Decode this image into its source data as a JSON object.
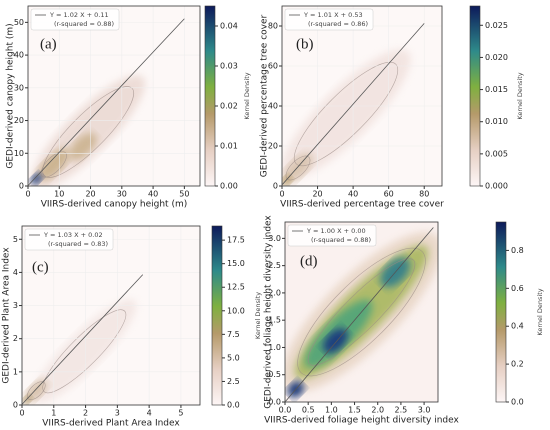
{
  "chart_data": [
    {
      "type": "kde",
      "panel_label": "(a)",
      "xlabel": "VIIRS-derived canopy height (m)",
      "ylabel": "GEDI-derived canopy height (m)",
      "xlim": [
        0,
        55
      ],
      "ylim": [
        0,
        55
      ],
      "xticks": [
        0,
        10,
        20,
        30,
        40,
        50
      ],
      "yticks": [
        0,
        10,
        20,
        30,
        40,
        50
      ],
      "fit": {
        "slope": 1.02,
        "intercept": 0.11,
        "x": [
          0,
          50
        ]
      },
      "legend": [
        "Y = 1.02 X + 0.11",
        "(r-squared = 0.88)"
      ],
      "colorbar_label": "Kernel Density",
      "clim": [
        0,
        0.045
      ],
      "cticks": [
        {
          "value": 0,
          "label": "0.00"
        },
        0.01,
        0.02,
        0.03,
        0.04
      ]
    },
    {
      "type": "kde",
      "panel_label": "(b)",
      "xlabel": "VIIRS-derived percentage tree cover",
      "ylabel": "GEDI-derived percentage tree cover",
      "xlim": [
        0,
        90
      ],
      "ylim": [
        0,
        90
      ],
      "xticks": [
        0,
        20,
        40,
        60,
        80
      ],
      "yticks": [
        0,
        20,
        40,
        60,
        80
      ],
      "fit": {
        "slope": 1.01,
        "intercept": 0.53,
        "x": [
          0,
          80
        ]
      },
      "legend": [
        "Y = 1.01 X + 0.53",
        "(r-squared = 0.86)"
      ],
      "colorbar_label": "Kernel Density",
      "clim": [
        0,
        0.028
      ],
      "cticks": [
        {
          "value": 0,
          "label": "0.000"
        },
        0.005,
        {
          "value": 0.01,
          "label": "0.010"
        },
        0.015,
        {
          "value": 0.02,
          "label": "0.020"
        },
        0.025
      ]
    },
    {
      "type": "kde",
      "panel_label": "(c)",
      "xlabel": "VIIRS-derived Plant Area Index",
      "ylabel": "GEDI-derived Plant Area Index",
      "xlim": [
        0,
        5.6
      ],
      "ylim": [
        0,
        5.4
      ],
      "xticks": [
        0,
        1,
        2,
        3,
        4,
        5
      ],
      "yticks": [
        0,
        1,
        2,
        3,
        4,
        5
      ],
      "fit": {
        "slope": 1.03,
        "intercept": 0.02,
        "x": [
          0,
          3.8
        ]
      },
      "legend": [
        "Y = 1.03 X + 0.02",
        "(r-squared = 0.83)"
      ],
      "colorbar_label": "Kernel Density",
      "clim": [
        0,
        19
      ],
      "cticks": [
        {
          "value": 0,
          "label": "0.0"
        },
        2.5,
        {
          "value": 5,
          "label": "5.0"
        },
        7.5,
        {
          "value": 10,
          "label": "10.0"
        },
        12.5,
        {
          "value": 15,
          "label": "15.0"
        },
        17.5
      ]
    },
    {
      "type": "kde",
      "panel_label": "(d)",
      "xlabel": "VIIRS-derived foliage height diversity index",
      "ylabel": "GEDI-derived foliage height diversity index",
      "xlim": [
        0,
        3.3
      ],
      "ylim": [
        0,
        3.3
      ],
      "xticks": [
        {
          "value": 0,
          "label": "0.0"
        },
        0.5,
        {
          "value": 1,
          "label": "1.0"
        },
        1.5,
        {
          "value": 2,
          "label": "2.0"
        },
        2.5,
        {
          "value": 3,
          "label": "3.0"
        }
      ],
      "yticks": [
        {
          "value": 0,
          "label": "0.0"
        },
        0.5,
        {
          "value": 1,
          "label": "1.0"
        },
        1.5,
        {
          "value": 2,
          "label": "2.0"
        },
        2.5,
        {
          "value": 3,
          "label": "3.0"
        }
      ],
      "fit": {
        "slope": 1.0,
        "intercept": 0.0,
        "x": [
          0,
          3.2
        ]
      },
      "legend": [
        "Y = 1.00 X + 0.00",
        "(r-squared = 0.88)"
      ],
      "colorbar_label": "Kernel Density",
      "clim": [
        0,
        0.95
      ],
      "cticks": [
        {
          "value": 0,
          "label": "0.0"
        },
        0.2,
        0.4,
        0.6,
        0.8
      ]
    }
  ]
}
